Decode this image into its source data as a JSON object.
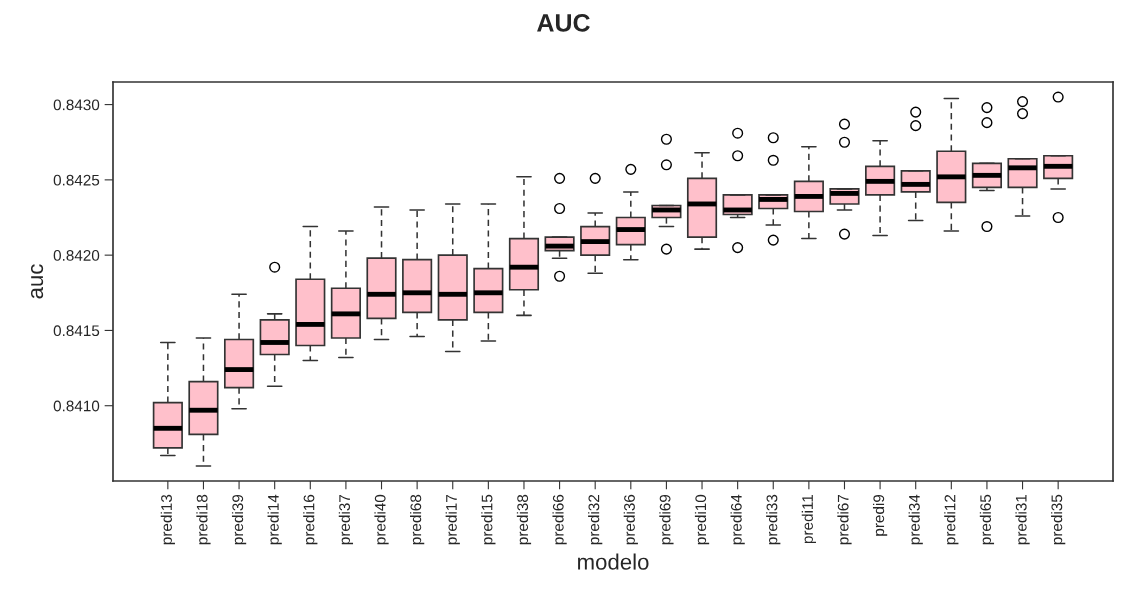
{
  "chart_data": {
    "type": "box",
    "title": "AUC",
    "xlabel": "modelo",
    "ylabel": "auc",
    "color": "#ffc0cb",
    "categories": [
      "predi13",
      "predi18",
      "predi39",
      "predi14",
      "predi16",
      "predi37",
      "predi40",
      "predi68",
      "predi17",
      "predi15",
      "predi38",
      "predi66",
      "predi32",
      "predi36",
      "predi69",
      "predi10",
      "predi64",
      "predi33",
      "predi11",
      "predi67",
      "predi9",
      "predi34",
      "predi12",
      "predi65",
      "predi31",
      "predi35"
    ],
    "boxes": [
      {
        "low": 0.84067,
        "q1": 0.84072,
        "median": 0.84085,
        "q3": 0.84102,
        "high": 0.84142
      },
      {
        "low": 0.8406,
        "q1": 0.84081,
        "median": 0.84097,
        "q3": 0.84116,
        "high": 0.84145
      },
      {
        "low": 0.84098,
        "q1": 0.84112,
        "median": 0.84124,
        "q3": 0.84144,
        "high": 0.84174
      },
      {
        "low": 0.84113,
        "q1": 0.84134,
        "median": 0.84142,
        "q3": 0.84157,
        "high": 0.84161,
        "outliers": [
          0.84192
        ]
      },
      {
        "low": 0.8413,
        "q1": 0.8414,
        "median": 0.84154,
        "q3": 0.84184,
        "high": 0.84219
      },
      {
        "low": 0.84132,
        "q1": 0.84145,
        "median": 0.84161,
        "q3": 0.84178,
        "high": 0.84216
      },
      {
        "low": 0.84144,
        "q1": 0.84158,
        "median": 0.84174,
        "q3": 0.84198,
        "high": 0.84232
      },
      {
        "low": 0.84146,
        "q1": 0.84162,
        "median": 0.84175,
        "q3": 0.84197,
        "high": 0.8423
      },
      {
        "low": 0.84136,
        "q1": 0.84157,
        "median": 0.84174,
        "q3": 0.842,
        "high": 0.84234
      },
      {
        "low": 0.84143,
        "q1": 0.84162,
        "median": 0.84175,
        "q3": 0.84191,
        "high": 0.84234
      },
      {
        "low": 0.8416,
        "q1": 0.84177,
        "median": 0.84192,
        "q3": 0.84211,
        "high": 0.84252
      },
      {
        "low": 0.84198,
        "q1": 0.84203,
        "median": 0.84206,
        "q3": 0.84212,
        "high": 0.84212,
        "outliers": [
          0.84251,
          0.84231,
          0.84186
        ]
      },
      {
        "low": 0.84188,
        "q1": 0.842,
        "median": 0.84209,
        "q3": 0.84219,
        "high": 0.84228,
        "outliers": [
          0.84251
        ]
      },
      {
        "low": 0.84197,
        "q1": 0.84207,
        "median": 0.84217,
        "q3": 0.84225,
        "high": 0.84242,
        "outliers": [
          0.84257
        ]
      },
      {
        "low": 0.84219,
        "q1": 0.84225,
        "median": 0.8423,
        "q3": 0.84233,
        "high": 0.84233,
        "outliers": [
          0.84277,
          0.8426,
          0.84204
        ]
      },
      {
        "low": 0.84204,
        "q1": 0.84212,
        "median": 0.84234,
        "q3": 0.84251,
        "high": 0.84268
      },
      {
        "low": 0.84225,
        "q1": 0.84227,
        "median": 0.8423,
        "q3": 0.8424,
        "high": 0.8424,
        "outliers": [
          0.84281,
          0.84266,
          0.84205
        ]
      },
      {
        "low": 0.8422,
        "q1": 0.84231,
        "median": 0.84237,
        "q3": 0.8424,
        "high": 0.8424,
        "outliers": [
          0.84278,
          0.84263,
          0.8421
        ]
      },
      {
        "low": 0.84211,
        "q1": 0.84229,
        "median": 0.84239,
        "q3": 0.84249,
        "high": 0.84272
      },
      {
        "low": 0.8423,
        "q1": 0.84234,
        "median": 0.84241,
        "q3": 0.84244,
        "high": 0.84244,
        "outliers": [
          0.84287,
          0.84275,
          0.84214
        ]
      },
      {
        "low": 0.84213,
        "q1": 0.8424,
        "median": 0.84249,
        "q3": 0.84259,
        "high": 0.84276
      },
      {
        "low": 0.84223,
        "q1": 0.84242,
        "median": 0.84247,
        "q3": 0.84256,
        "high": 0.84256,
        "outliers": [
          0.84295,
          0.84286
        ]
      },
      {
        "low": 0.84216,
        "q1": 0.84235,
        "median": 0.84252,
        "q3": 0.84269,
        "high": 0.84304
      },
      {
        "low": 0.84243,
        "q1": 0.84245,
        "median": 0.84253,
        "q3": 0.84261,
        "high": 0.84261,
        "outliers": [
          0.84298,
          0.84288,
          0.84219
        ]
      },
      {
        "low": 0.84226,
        "q1": 0.84245,
        "median": 0.84258,
        "q3": 0.84264,
        "high": 0.84264,
        "outliers": [
          0.84302,
          0.84294
        ]
      },
      {
        "low": 0.84244,
        "q1": 0.84251,
        "median": 0.84259,
        "q3": 0.84266,
        "high": 0.84266,
        "outliers": [
          0.84305,
          0.84225
        ]
      }
    ],
    "ylim": [
      0.8405,
      0.84315
    ],
    "yticks": [
      {
        "value": 0.841,
        "label": "0.8410"
      },
      {
        "value": 0.8415,
        "label": "0.8415"
      },
      {
        "value": 0.842,
        "label": "0.8420"
      },
      {
        "value": 0.8425,
        "label": "0.8425"
      },
      {
        "value": 0.843,
        "label": "0.8430"
      }
    ],
    "grid": false,
    "legend": false
  }
}
